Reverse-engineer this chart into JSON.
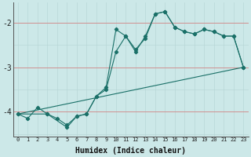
{
  "xlabel": "Humidex (Indice chaleur)",
  "ylabel": "",
  "background_color": "#cce8e8",
  "line_color": "#1a7068",
  "grid_color_v": "#b8d8d8",
  "grid_color_h": "#b8d8d8",
  "red_grid_color": "#d09090",
  "xlim": [
    -0.5,
    23.5
  ],
  "ylim": [
    -4.55,
    -1.55
  ],
  "yticks": [
    -4,
    -3,
    -2
  ],
  "xticks": [
    0,
    1,
    2,
    3,
    4,
    5,
    6,
    7,
    8,
    9,
    10,
    11,
    12,
    13,
    14,
    15,
    16,
    17,
    18,
    19,
    20,
    21,
    22,
    23
  ],
  "line1_x": [
    0,
    1,
    2,
    3,
    4,
    5,
    6,
    7,
    8,
    9,
    10,
    11,
    12,
    13,
    14,
    15,
    16,
    17,
    18,
    19,
    20,
    21,
    22,
    23
  ],
  "line1_y": [
    -4.05,
    -4.15,
    -3.9,
    -4.05,
    -4.15,
    -4.3,
    -4.1,
    -4.05,
    -3.65,
    -3.45,
    -2.15,
    -2.3,
    -2.6,
    -2.35,
    -1.8,
    -1.75,
    -2.1,
    -2.2,
    -2.25,
    -2.15,
    -2.2,
    -2.3,
    -2.3,
    -3.0
  ],
  "line2_x": [
    0,
    3,
    5,
    6,
    7,
    8,
    9,
    10,
    11,
    12,
    13,
    14,
    15,
    16,
    17,
    18,
    19,
    20,
    21,
    22,
    23
  ],
  "line2_y": [
    -4.05,
    -4.05,
    -4.35,
    -4.1,
    -4.05,
    -3.65,
    -3.5,
    -2.65,
    -2.3,
    -2.65,
    -2.3,
    -1.8,
    -1.75,
    -2.1,
    -2.2,
    -2.25,
    -2.15,
    -2.2,
    -2.3,
    -2.3,
    -3.0
  ],
  "line3_x": [
    0,
    23
  ],
  "line3_y": [
    -4.05,
    -3.0
  ]
}
